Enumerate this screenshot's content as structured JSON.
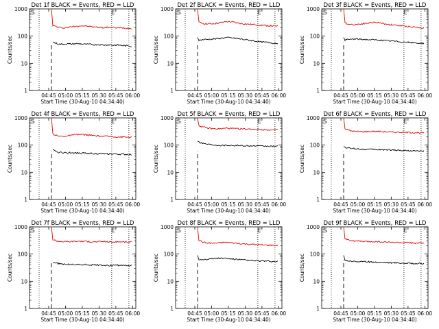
{
  "chart_data": [
    {
      "type": "line",
      "title": "Det 1f BLACK = Events, RED = LLD",
      "xlabel": "Start Time (30-Aug-10 04:34:40)",
      "ylabel": "Counts/sec",
      "yscale": "log",
      "ylim": [
        1,
        1000
      ],
      "xticks": [
        "04:45",
        "05:00",
        "05:15",
        "05:30",
        "05:45",
        "06:00"
      ],
      "yticks": [
        "1",
        "10",
        "100",
        "1000"
      ],
      "markers": [
        "S",
        "E"
      ],
      "series": [
        {
          "color": "#e00000",
          "start_level": 1000,
          "values": [
            250,
            215,
            200,
            205,
            220,
            230,
            240,
            235,
            225,
            215,
            210,
            205,
            210,
            205,
            200,
            200,
            195,
            190
          ]
        },
        {
          "color": "#000000",
          "values": [
            60,
            52,
            50,
            52,
            51,
            53,
            52,
            50,
            50,
            48,
            49,
            47,
            48,
            46,
            47,
            45,
            44,
            42
          ]
        }
      ]
    },
    {
      "type": "line",
      "title": "Det 2f BLACK = Events, RED = LLD",
      "xlabel": "Start Time (30-Aug-10 04:34:40)",
      "ylabel": "Counts/sec",
      "yscale": "log",
      "ylim": [
        1,
        1000
      ],
      "xticks": [
        "04:45",
        "05:00",
        "05:15",
        "05:30",
        "05:45",
        "06:00"
      ],
      "yticks": [
        "1",
        "10",
        "100",
        "1000"
      ],
      "markers": [
        "S",
        "E"
      ],
      "series": [
        {
          "color": "#e00000",
          "start_level": 1000,
          "values": [
            320,
            290,
            280,
            285,
            300,
            320,
            340,
            335,
            310,
            290,
            280,
            270,
            265,
            255,
            250,
            240,
            235,
            230
          ]
        },
        {
          "color": "#000000",
          "start_level": 90,
          "values": [
            70,
            75,
            76,
            78,
            80,
            85,
            88,
            86,
            82,
            78,
            74,
            70,
            66,
            62,
            60,
            58,
            55,
            54
          ]
        }
      ]
    },
    {
      "type": "line",
      "title": "Det 3f BLACK = Events, RED = LLD",
      "xlabel": "Start Time (30-Aug-10 04:34:40)",
      "ylabel": "Counts/sec",
      "yscale": "log",
      "ylim": [
        1,
        1000
      ],
      "xticks": [
        "04:45",
        "05:00",
        "05:15",
        "05:30",
        "05:45",
        "06:00"
      ],
      "yticks": [
        "1",
        "10",
        "100",
        "1000"
      ],
      "markers": [
        "S",
        "E"
      ],
      "series": [
        {
          "color": "#e00000",
          "start_level": 1000,
          "values": [
            300,
            270,
            265,
            275,
            290,
            300,
            320,
            315,
            295,
            275,
            260,
            250,
            240,
            230,
            225,
            215,
            205,
            200
          ]
        },
        {
          "color": "#000000",
          "start_level": 90,
          "values": [
            72,
            76,
            78,
            77,
            76,
            74,
            73,
            72,
            70,
            68,
            66,
            64,
            62,
            60,
            58,
            56,
            55,
            54
          ]
        }
      ]
    },
    {
      "type": "line",
      "title": "Det 4f BLACK = Events, RED = LLD",
      "xlabel": "Start Time (30-Aug-10 04:34:40)",
      "ylabel": "Counts/sec",
      "yscale": "log",
      "ylim": [
        1,
        1000
      ],
      "xticks": [
        "04:45",
        "05:00",
        "05:15",
        "05:30",
        "05:45",
        "06:00"
      ],
      "yticks": [
        "1",
        "10",
        "100",
        "1000"
      ],
      "markers": [
        "S",
        "E"
      ],
      "series": [
        {
          "color": "#e00000",
          "start_level": 1000,
          "values": [
            260,
            215,
            210,
            215,
            230,
            240,
            245,
            240,
            230,
            220,
            215,
            210,
            210,
            205,
            200,
            200,
            195,
            195
          ]
        },
        {
          "color": "#000000",
          "values": [
            65,
            55,
            53,
            52,
            53,
            52,
            51,
            50,
            50,
            49,
            48,
            48,
            47,
            47,
            46,
            46,
            45,
            45
          ]
        }
      ]
    },
    {
      "type": "line",
      "title": "Det 5f BLACK = Events, RED = LLD",
      "xlabel": "Start Time (30-Aug-10 04:34:40)",
      "ylabel": "Counts/sec",
      "yscale": "log",
      "ylim": [
        1,
        1000
      ],
      "xticks": [
        "04:45",
        "05:00",
        "05:15",
        "05:30",
        "05:45",
        "06:00"
      ],
      "yticks": [
        "1",
        "10",
        "100",
        "1000"
      ],
      "markers": [
        "S",
        "E"
      ],
      "series": [
        {
          "color": "#e00000",
          "start_level": 1000,
          "values": [
            520,
            450,
            420,
            400,
            395,
            400,
            420,
            410,
            400,
            395,
            390,
            385,
            380,
            375,
            370,
            365,
            360,
            360
          ]
        },
        {
          "color": "#000000",
          "start_level": 140,
          "values": [
            130,
            115,
            108,
            103,
            100,
            98,
            100,
            98,
            97,
            96,
            95,
            94,
            93,
            92,
            91,
            91,
            90,
            90
          ]
        }
      ]
    },
    {
      "type": "line",
      "title": "Det 6f BLACK = Events, RED = LLD",
      "xlabel": "Start Time (30-Aug-10 04:34:40)",
      "ylabel": "Counts/sec",
      "yscale": "log",
      "ylim": [
        1,
        1000
      ],
      "xticks": [
        "04:45",
        "05:00",
        "05:15",
        "05:30",
        "05:45",
        "06:00"
      ],
      "yticks": [
        "1",
        "10",
        "100",
        "1000"
      ],
      "markers": [
        "S",
        "E"
      ],
      "series": [
        {
          "color": "#e00000",
          "start_level": 1000,
          "values": [
            400,
            340,
            320,
            315,
            310,
            315,
            320,
            318,
            312,
            305,
            300,
            298,
            295,
            292,
            290,
            288,
            285,
            285
          ]
        },
        {
          "color": "#000000",
          "start_level": 90,
          "values": [
            82,
            76,
            74,
            72,
            70,
            70,
            69,
            68,
            68,
            67,
            66,
            65,
            64,
            63,
            62,
            61,
            60,
            60
          ]
        }
      ]
    },
    {
      "type": "line",
      "title": "Det 7f BLACK = Events, RED = LLD",
      "xlabel": "Start Time (30-Aug-10 04:34:40)",
      "ylabel": "Counts/sec",
      "yscale": "log",
      "ylim": [
        1,
        1000
      ],
      "xticks": [
        "04:45",
        "05:00",
        "05:15",
        "05:30",
        "05:45",
        "06:00"
      ],
      "yticks": [
        "1",
        "10",
        "100",
        "1000"
      ],
      "markers": [
        "S",
        "E"
      ],
      "series": [
        {
          "color": "#e00000",
          "start_level": 1000,
          "values": [
            340,
            300,
            290,
            285,
            290,
            295,
            300,
            290,
            285,
            280,
            285,
            290,
            280,
            275,
            285,
            280,
            275,
            280
          ]
        },
        {
          "color": "#000000",
          "values": [
            50,
            45,
            43,
            42,
            41,
            42,
            40,
            41,
            40,
            39,
            40,
            39,
            38,
            38,
            39,
            38,
            37,
            38
          ]
        }
      ]
    },
    {
      "type": "line",
      "title": "Det 8f BLACK = Events, RED = LLD",
      "xlabel": "Start Time (30-Aug-10 04:34:40)",
      "ylabel": "Counts/sec",
      "yscale": "log",
      "ylim": [
        1,
        1000
      ],
      "xticks": [
        "04:45",
        "05:00",
        "05:15",
        "05:30",
        "05:45",
        "06:00"
      ],
      "yticks": [
        "1",
        "10",
        "100",
        "1000"
      ],
      "markers": [
        "S",
        "E"
      ],
      "series": [
        {
          "color": "#e00000",
          "start_level": 1000,
          "values": [
            320,
            270,
            255,
            250,
            255,
            265,
            270,
            260,
            250,
            240,
            235,
            230,
            225,
            220,
            215,
            212,
            210,
            208
          ]
        },
        {
          "color": "#000000",
          "start_level": 90,
          "values": [
            62,
            64,
            66,
            68,
            70,
            70,
            68,
            66,
            64,
            62,
            60,
            58,
            57,
            56,
            55,
            54,
            53,
            52
          ]
        }
      ]
    },
    {
      "type": "line",
      "title": "Det 9f BLACK = Events, RED = LLD",
      "xlabel": "Start Time (30-Aug-10 04:34:40)",
      "ylabel": "Counts/sec",
      "yscale": "log",
      "ylim": [
        1,
        1000
      ],
      "xticks": [
        "04:45",
        "05:00",
        "05:15",
        "05:30",
        "05:45",
        "06:00"
      ],
      "yticks": [
        "1",
        "10",
        "100",
        "1000"
      ],
      "markers": [
        "S",
        "E"
      ],
      "series": [
        {
          "color": "#e00000",
          "start_level": 1000,
          "values": [
            380,
            320,
            300,
            295,
            290,
            285,
            290,
            285,
            280,
            275,
            270,
            265,
            262,
            260,
            258,
            255,
            252,
            250
          ]
        },
        {
          "color": "#000000",
          "start_level": 90,
          "values": [
            60,
            56,
            54,
            53,
            52,
            52,
            51,
            50,
            50,
            49,
            48,
            48,
            47,
            46,
            46,
            45,
            45,
            44
          ]
        }
      ]
    }
  ]
}
